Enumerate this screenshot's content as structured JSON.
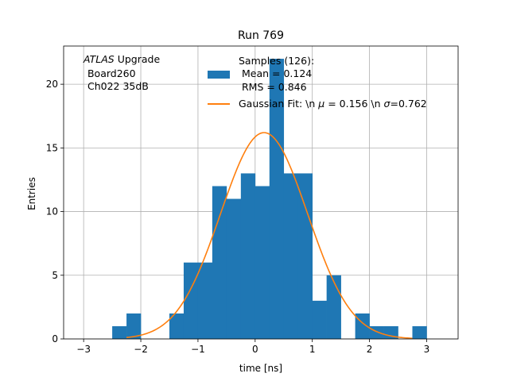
{
  "chart_data": {
    "type": "bar",
    "title": "Run 769",
    "xlabel": "time [ns]",
    "ylabel": "Entries",
    "xlim": [
      -3.35,
      3.55
    ],
    "ylim": [
      0,
      23
    ],
    "xticks": [
      -3,
      -2,
      -1,
      0,
      1,
      2,
      3
    ],
    "yticks": [
      0,
      5,
      10,
      15,
      20
    ],
    "grid": true,
    "bin_width": 0.25,
    "bin_edges_start": -2.5,
    "values": [
      1,
      2,
      0,
      0,
      2,
      6,
      6,
      12,
      11,
      13,
      12,
      22,
      13,
      13,
      3,
      5,
      0,
      2,
      1,
      1,
      0,
      1
    ],
    "annotation_lines": [
      "ATLAS",
      " Upgrade",
      " Board260",
      " Ch022 35dB"
    ],
    "series": [
      {
        "name": "Samples (126):",
        "type": "histogram",
        "color": "#1f77b4",
        "legend_lines": [
          "Samples (126):",
          " Mean = 0.124",
          " RMS = 0.846"
        ]
      },
      {
        "name": "Gaussian Fit: \\n μ = 0.156 \\n σ=0.762",
        "type": "line",
        "color": "#ff7f0e",
        "amplitude": 16.2,
        "mu": 0.156,
        "sigma": 0.762,
        "x_range": [
          -2.25,
          2.75
        ]
      }
    ],
    "legend_placement": "upper-center"
  }
}
